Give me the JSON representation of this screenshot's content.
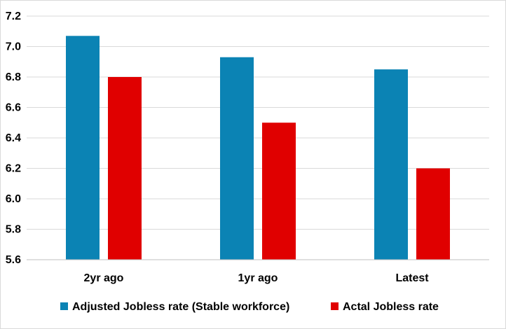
{
  "chart_data": {
    "type": "bar",
    "categories": [
      "2yr ago",
      "1yr ago",
      "Latest"
    ],
    "series": [
      {
        "name": "Adjusted Jobless rate (Stable workforce)",
        "values": [
          7.07,
          6.93,
          6.85
        ],
        "color": "#0b83b4"
      },
      {
        "name": "Actal Jobless rate",
        "values": [
          6.8,
          6.5,
          6.2
        ],
        "color": "#e00000"
      }
    ],
    "ylim": [
      5.6,
      7.2
    ],
    "yticks": [
      "5.6",
      "5.8",
      "6.0",
      "6.2",
      "6.4",
      "6.6",
      "6.8",
      "7.0",
      "7.2"
    ],
    "grid": true,
    "legend": "bottom",
    "gridline_color": "#d9d9d9",
    "axis_color": "#bfbfbf"
  }
}
